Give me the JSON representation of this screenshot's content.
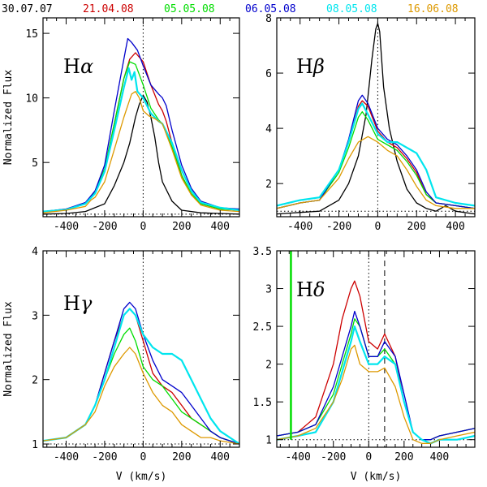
{
  "legend": [
    {
      "label": "30.07.07",
      "color": "#000000"
    },
    {
      "label": "21.04.08",
      "color": "#cc0000"
    },
    {
      "label": "05.05.08",
      "color": "#00dd00"
    },
    {
      "label": "06.05.08",
      "color": "#0000cc"
    },
    {
      "label": "08.05.08",
      "color": "#00e5ee"
    },
    {
      "label": "16.06.08",
      "color": "#dd9900"
    }
  ],
  "chart_data": [
    {
      "type": "line",
      "title": "Hα",
      "title_main": "H",
      "title_greek": "α",
      "xlabel": "",
      "ylabel": "Normalized Flux",
      "xlim": [
        -520,
        500
      ],
      "ylim": [
        0.8,
        16.2
      ],
      "xticks": [
        -400,
        -200,
        0,
        200,
        400
      ],
      "yticks": [
        5,
        10,
        15
      ],
      "ref_lines": {
        "vertical": [
          0
        ],
        "horizontal": [
          1
        ]
      },
      "series": [
        {
          "name": "30.07.07",
          "x": [
            -520,
            -400,
            -300,
            -200,
            -150,
            -100,
            -70,
            -40,
            -20,
            0,
            20,
            40,
            60,
            80,
            100,
            150,
            200,
            300,
            400,
            500
          ],
          "y": [
            1.0,
            1.05,
            1.2,
            1.8,
            3.2,
            5.0,
            6.5,
            8.5,
            9.5,
            10.2,
            9.7,
            8.5,
            7.0,
            5.0,
            3.5,
            2.0,
            1.3,
            1.1,
            1.05,
            1.0
          ]
        },
        {
          "name": "21.04.08",
          "x": [
            -520,
            -400,
            -300,
            -250,
            -200,
            -150,
            -100,
            -70,
            -40,
            0,
            40,
            80,
            100,
            120,
            150,
            200,
            250,
            300,
            400,
            500
          ],
          "y": [
            1.2,
            1.4,
            1.8,
            2.8,
            4.5,
            8.0,
            11.5,
            13.0,
            13.5,
            12.8,
            11.0,
            9.5,
            9.0,
            8.2,
            6.5,
            4.0,
            2.5,
            1.8,
            1.4,
            1.3
          ]
        },
        {
          "name": "05.05.08",
          "x": [
            -520,
            -400,
            -300,
            -250,
            -200,
            -150,
            -100,
            -70,
            -40,
            0,
            40,
            80,
            100,
            150,
            200,
            250,
            300,
            400,
            500
          ],
          "y": [
            1.2,
            1.35,
            1.8,
            2.7,
            4.5,
            8.0,
            11.5,
            12.8,
            12.6,
            11.0,
            9.2,
            8.3,
            8.0,
            6.2,
            4.0,
            2.6,
            1.8,
            1.4,
            1.3
          ]
        },
        {
          "name": "06.05.08",
          "x": [
            -520,
            -400,
            -300,
            -250,
            -200,
            -150,
            -100,
            -80,
            -60,
            -30,
            0,
            40,
            80,
            100,
            120,
            150,
            200,
            250,
            300,
            400,
            500
          ],
          "y": [
            1.2,
            1.4,
            1.9,
            2.8,
            4.8,
            9.0,
            13.0,
            14.6,
            14.3,
            13.7,
            12.5,
            11.0,
            10.3,
            10.0,
            9.4,
            7.5,
            4.8,
            3.0,
            2.0,
            1.5,
            1.4
          ]
        },
        {
          "name": "08.05.08",
          "x": [
            -520,
            -400,
            -300,
            -250,
            -200,
            -150,
            -100,
            -75,
            -60,
            -45,
            -30,
            0,
            40,
            80,
            100,
            150,
            200,
            250,
            300,
            400,
            500
          ],
          "y": [
            1.2,
            1.35,
            1.8,
            2.6,
            4.3,
            7.5,
            10.8,
            12.3,
            11.4,
            12.0,
            10.5,
            10.0,
            8.8,
            8.2,
            8.0,
            6.5,
            4.4,
            2.8,
            1.9,
            1.5,
            1.3
          ]
        },
        {
          "name": "16.06.08",
          "x": [
            -520,
            -400,
            -300,
            -270,
            -250,
            -200,
            -150,
            -100,
            -60,
            -40,
            -20,
            0,
            30,
            60,
            100,
            150,
            200,
            250,
            300,
            400,
            500
          ],
          "y": [
            1.1,
            1.3,
            1.6,
            2.1,
            2.3,
            3.5,
            6.0,
            8.5,
            10.3,
            10.5,
            10.0,
            9.0,
            8.6,
            8.4,
            8.0,
            6.0,
            3.8,
            2.5,
            1.7,
            1.3,
            1.2
          ]
        }
      ]
    },
    {
      "type": "line",
      "title": "Hβ",
      "title_main": "H",
      "title_greek": "β",
      "xlabel": "",
      "ylabel": "",
      "xlim": [
        -520,
        500
      ],
      "ylim": [
        0.8,
        8.0
      ],
      "xticks": [
        -400,
        -200,
        0,
        200,
        400
      ],
      "yticks": [
        2,
        4,
        6,
        8
      ],
      "ref_lines": {
        "vertical": [
          0
        ],
        "horizontal": [
          1
        ]
      },
      "series": [
        {
          "name": "30.07.07",
          "x": [
            -520,
            -300,
            -200,
            -150,
            -100,
            -60,
            -30,
            -10,
            0,
            10,
            30,
            60,
            100,
            150,
            200,
            250,
            300,
            350,
            400,
            500
          ],
          "y": [
            0.9,
            1.0,
            1.4,
            2.0,
            3.0,
            4.5,
            6.5,
            7.6,
            7.8,
            7.5,
            5.5,
            4.0,
            2.8,
            1.8,
            1.3,
            1.1,
            1.0,
            1.2,
            1.0,
            0.9
          ]
        },
        {
          "name": "21.04.08",
          "x": [
            -520,
            -400,
            -300,
            -200,
            -150,
            -100,
            -80,
            -50,
            0,
            50,
            100,
            150,
            200,
            250,
            300,
            400,
            500
          ],
          "y": [
            1.1,
            1.3,
            1.4,
            2.5,
            3.5,
            4.8,
            5.0,
            4.8,
            3.9,
            3.5,
            3.3,
            2.9,
            2.4,
            1.6,
            1.3,
            1.2,
            1.1
          ]
        },
        {
          "name": "05.05.08",
          "x": [
            -520,
            -400,
            -300,
            -200,
            -150,
            -100,
            -80,
            -50,
            0,
            50,
            100,
            150,
            200,
            250,
            300,
            400,
            500
          ],
          "y": [
            1.1,
            1.3,
            1.4,
            2.4,
            3.3,
            4.4,
            4.6,
            4.3,
            3.6,
            3.4,
            3.2,
            2.8,
            2.3,
            1.6,
            1.3,
            1.2,
            1.1
          ]
        },
        {
          "name": "06.05.08",
          "x": [
            -520,
            -400,
            -300,
            -200,
            -150,
            -100,
            -80,
            -50,
            0,
            50,
            100,
            150,
            200,
            250,
            300,
            400,
            500
          ],
          "y": [
            1.1,
            1.3,
            1.4,
            2.5,
            3.6,
            5.0,
            5.2,
            4.9,
            4.0,
            3.6,
            3.4,
            3.0,
            2.5,
            1.7,
            1.3,
            1.2,
            1.1
          ]
        },
        {
          "name": "08.05.08",
          "x": [
            -520,
            -400,
            -300,
            -200,
            -150,
            -100,
            -80,
            -50,
            0,
            50,
            100,
            150,
            200,
            250,
            300,
            400,
            500
          ],
          "y": [
            1.2,
            1.4,
            1.5,
            2.5,
            3.5,
            4.7,
            4.9,
            4.5,
            3.8,
            3.5,
            3.5,
            3.3,
            3.1,
            2.5,
            1.5,
            1.3,
            1.2
          ]
        },
        {
          "name": "16.06.08",
          "x": [
            -520,
            -400,
            -300,
            -200,
            -150,
            -100,
            -50,
            0,
            50,
            100,
            150,
            200,
            250,
            300,
            400,
            500
          ],
          "y": [
            1.1,
            1.3,
            1.4,
            2.2,
            2.9,
            3.5,
            3.7,
            3.5,
            3.2,
            3.0,
            2.5,
            1.9,
            1.4,
            1.2,
            1.1,
            1.1
          ]
        }
      ]
    },
    {
      "type": "line",
      "title": "Hγ",
      "title_main": "H",
      "title_greek": "γ",
      "xlabel": "V (km/s)",
      "ylabel": "Normalized Flux",
      "xlim": [
        -520,
        500
      ],
      "ylim": [
        0.95,
        4.0
      ],
      "xticks": [
        -400,
        -200,
        0,
        200,
        400
      ],
      "yticks": [
        1,
        2,
        3,
        4
      ],
      "ref_lines": {
        "vertical": [
          0
        ],
        "horizontal": [
          1
        ]
      },
      "series": [
        {
          "name": "21.04.08",
          "x": [
            -520,
            -400,
            -300,
            -250,
            -200,
            -150,
            -100,
            -70,
            -40,
            0,
            50,
            100,
            150,
            200,
            250,
            300,
            350,
            400,
            500
          ],
          "y": [
            1.05,
            1.1,
            1.3,
            1.6,
            2.1,
            2.6,
            3.0,
            3.1,
            3.0,
            2.6,
            2.1,
            1.9,
            1.8,
            1.6,
            1.4,
            1.3,
            1.2,
            1.1,
            1.0
          ]
        },
        {
          "name": "05.05.08",
          "x": [
            -520,
            -400,
            -300,
            -250,
            -200,
            -150,
            -100,
            -70,
            -40,
            0,
            50,
            100,
            150,
            200,
            250,
            300,
            350,
            400,
            500
          ],
          "y": [
            1.05,
            1.1,
            1.3,
            1.6,
            2.0,
            2.4,
            2.7,
            2.8,
            2.6,
            2.2,
            2.0,
            1.9,
            1.7,
            1.5,
            1.4,
            1.3,
            1.2,
            1.1,
            1.0
          ]
        },
        {
          "name": "06.05.08",
          "x": [
            -520,
            -400,
            -300,
            -250,
            -200,
            -150,
            -100,
            -70,
            -40,
            0,
            50,
            100,
            150,
            200,
            250,
            300,
            350,
            400,
            500
          ],
          "y": [
            1.05,
            1.1,
            1.3,
            1.6,
            2.1,
            2.6,
            3.1,
            3.2,
            3.1,
            2.7,
            2.3,
            2.0,
            1.9,
            1.8,
            1.6,
            1.4,
            1.2,
            1.1,
            1.0
          ]
        },
        {
          "name": "08.05.08",
          "x": [
            -520,
            -400,
            -300,
            -250,
            -200,
            -150,
            -100,
            -70,
            -40,
            0,
            50,
            100,
            150,
            200,
            250,
            300,
            350,
            400,
            500
          ],
          "y": [
            1.05,
            1.1,
            1.3,
            1.6,
            2.0,
            2.5,
            3.0,
            3.1,
            3.0,
            2.7,
            2.5,
            2.4,
            2.4,
            2.3,
            2.0,
            1.7,
            1.4,
            1.2,
            1.0
          ]
        },
        {
          "name": "16.06.08",
          "x": [
            -520,
            -400,
            -300,
            -250,
            -200,
            -150,
            -100,
            -70,
            -40,
            0,
            50,
            100,
            150,
            200,
            250,
            300,
            350,
            400,
            500
          ],
          "y": [
            1.05,
            1.1,
            1.3,
            1.5,
            1.9,
            2.2,
            2.4,
            2.5,
            2.4,
            2.1,
            1.8,
            1.6,
            1.5,
            1.3,
            1.2,
            1.1,
            1.1,
            1.05,
            1.0
          ]
        }
      ]
    },
    {
      "type": "line",
      "title": "Hδ",
      "title_main": "H",
      "title_greek": "δ",
      "xlabel": "V (km/s)",
      "ylabel": "",
      "xlim": [
        -520,
        600
      ],
      "ylim": [
        0.9,
        3.5
      ],
      "xticks": [
        -400,
        -200,
        0,
        200,
        400
      ],
      "yticks": [
        1,
        1.5,
        2,
        2.5,
        3,
        3.5
      ],
      "ref_lines": {
        "vertical": [
          0
        ],
        "dashed_vertical": [
          90
        ],
        "horizontal": [
          1
        ]
      },
      "series": [
        {
          "name": "21.04.08",
          "x": [
            -520,
            -400,
            -300,
            -200,
            -150,
            -100,
            -80,
            -50,
            0,
            50,
            90,
            150,
            200,
            250,
            300,
            350,
            400,
            500,
            600
          ],
          "y": [
            1.05,
            1.1,
            1.3,
            2.0,
            2.6,
            3.0,
            3.1,
            2.9,
            2.3,
            2.2,
            2.4,
            2.1,
            1.5,
            1.1,
            1.0,
            1.0,
            1.05,
            1.1,
            1.15
          ]
        },
        {
          "name": "05.05.08",
          "x": [
            -520,
            -400,
            -300,
            -200,
            -150,
            -100,
            -80,
            -50,
            0,
            50,
            90,
            150,
            200,
            250,
            300,
            350,
            400,
            500,
            600
          ],
          "y": [
            1.05,
            1.1,
            1.2,
            1.6,
            2.0,
            2.4,
            2.6,
            2.5,
            2.1,
            2.1,
            2.2,
            2.0,
            1.5,
            1.1,
            1.0,
            1.0,
            1.05,
            1.1,
            1.15
          ]
        },
        {
          "name": "06.05.08",
          "x": [
            -520,
            -400,
            -300,
            -200,
            -150,
            -100,
            -80,
            -50,
            0,
            50,
            90,
            150,
            200,
            250,
            300,
            350,
            400,
            500,
            600
          ],
          "y": [
            1.05,
            1.1,
            1.2,
            1.7,
            2.1,
            2.5,
            2.7,
            2.5,
            2.1,
            2.1,
            2.3,
            2.1,
            1.6,
            1.1,
            1.0,
            1.0,
            1.05,
            1.1,
            1.15
          ]
        },
        {
          "name": "08.05.08",
          "x": [
            -520,
            -400,
            -300,
            -200,
            -150,
            -100,
            -80,
            -50,
            0,
            50,
            90,
            150,
            200,
            250,
            300,
            350,
            400,
            500,
            600
          ],
          "y": [
            1.0,
            1.05,
            1.1,
            1.5,
            1.9,
            2.3,
            2.5,
            2.3,
            2.0,
            2.0,
            2.1,
            2.0,
            1.5,
            1.1,
            1.0,
            0.95,
            1.0,
            1.0,
            1.05
          ]
        },
        {
          "name": "16.06.08",
          "x": [
            -520,
            -400,
            -300,
            -200,
            -150,
            -100,
            -80,
            -50,
            0,
            50,
            90,
            150,
            200,
            250,
            300,
            350,
            400,
            500,
            600
          ],
          "y": [
            1.0,
            1.05,
            1.15,
            1.5,
            1.8,
            2.2,
            2.25,
            2.0,
            1.9,
            1.9,
            1.95,
            1.7,
            1.3,
            1.0,
            0.95,
            0.95,
            1.0,
            1.05,
            1.1
          ]
        }
      ],
      "spike": {
        "name": "05.05.08",
        "x": -440,
        "ymin": 1.0,
        "ymax": 3.5
      }
    }
  ]
}
